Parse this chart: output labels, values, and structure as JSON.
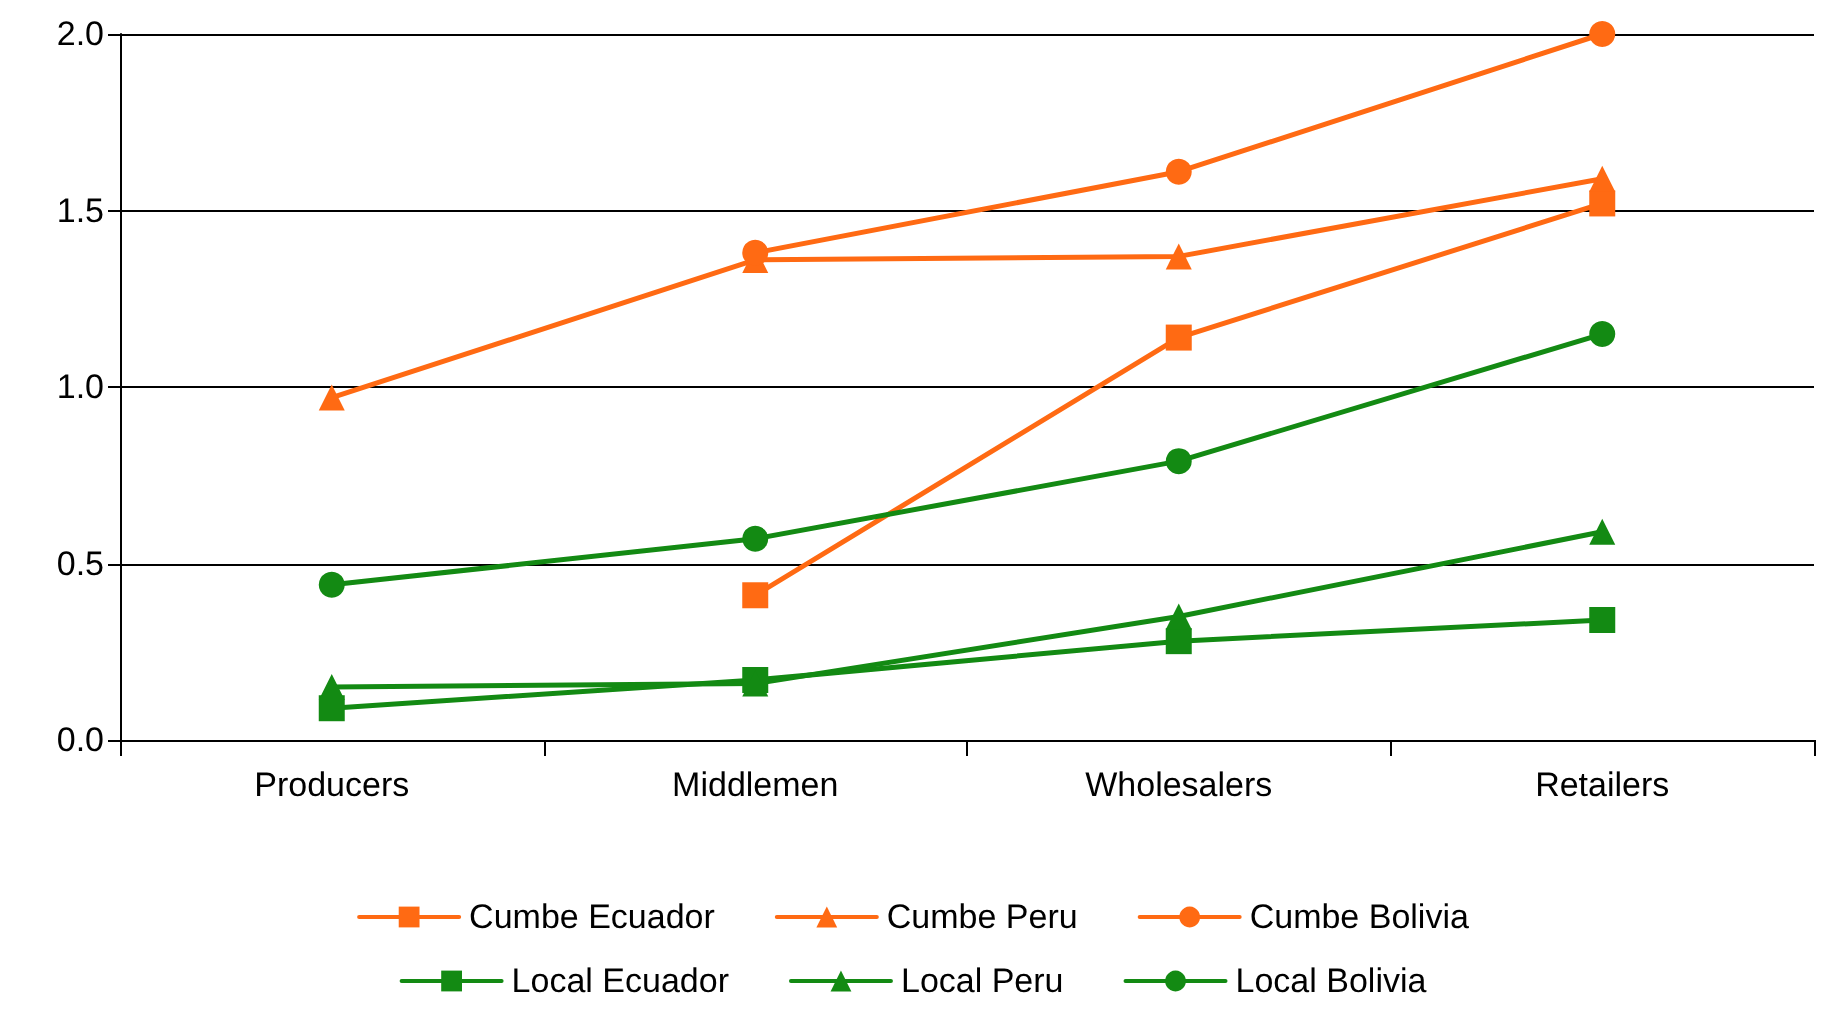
{
  "chart_data": {
    "type": "line",
    "categories": [
      "Producers",
      "Middlemen",
      "Wholesalers",
      "Retailers"
    ],
    "series": [
      {
        "name": "Cumbe Ecuador",
        "color": "#ff6a13",
        "marker": "square",
        "values": [
          null,
          0.41,
          1.14,
          1.52
        ]
      },
      {
        "name": "Cumbe Peru",
        "color": "#ff6a13",
        "marker": "triangle",
        "values": [
          0.97,
          1.36,
          1.37,
          1.59
        ]
      },
      {
        "name": "Cumbe Bolivia",
        "color": "#ff6a13",
        "marker": "circle",
        "values": [
          null,
          1.38,
          1.61,
          2.0
        ]
      },
      {
        "name": "Local Ecuador",
        "color": "#138a13",
        "marker": "square",
        "values": [
          0.09,
          0.17,
          0.28,
          0.34
        ]
      },
      {
        "name": "Local Peru",
        "color": "#138a13",
        "marker": "triangle",
        "values": [
          0.15,
          0.16,
          0.35,
          0.59
        ]
      },
      {
        "name": "Local Bolivia",
        "color": "#138a13",
        "marker": "circle",
        "values": [
          0.44,
          0.57,
          0.79,
          1.15
        ]
      }
    ],
    "ylim": [
      0,
      2.0
    ],
    "yticks": [
      {
        "value": 0,
        "label": "0.0"
      },
      {
        "value": 0.5,
        "label": "0.5"
      },
      {
        "value": 1,
        "label": "1.0"
      },
      {
        "value": 1.5,
        "label": "1.5"
      },
      {
        "value": 2,
        "label": "2.0"
      }
    ],
    "grid": "y",
    "legend": "bottom",
    "line_style": "solid"
  }
}
